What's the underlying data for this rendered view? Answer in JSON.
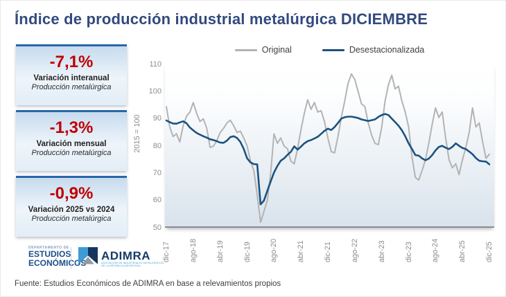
{
  "title": "Índice de producción industrial metalúrgica DICIEMBRE",
  "stat_boxes": [
    {
      "value": "-7,1%",
      "label": "Variación interanual",
      "sublabel": "Producción metalúrgica"
    },
    {
      "value": "-1,3%",
      "label": "Variación mensual",
      "sublabel": "Producción metalúrgica"
    },
    {
      "value": "-0,9%",
      "label": "Variación 2025 vs 2024",
      "sublabel": "Producción metalúrgica"
    }
  ],
  "branding": {
    "dept_small": "DEPARTAMENTO DE",
    "dept_line1": "ESTUDIOS",
    "dept_line2": "ECONÓMICOS",
    "adimra_name": "ADIMRA",
    "adimra_tagline_1": "ASOCIACIÓN DE INDUSTRIALES METALÚRGICOS",
    "adimra_tagline_2": "DE LA REPÚBLICA ARGENTINA"
  },
  "footer": "Fuente: Estudios Económicos de ADIMRA en base a relevamientos propios",
  "colors": {
    "title": "#324a7e",
    "negative_value": "#c00000",
    "box_border": "#2767a8",
    "original_line": "#b3b3b3",
    "desestacionalizada_line": "#1c527f",
    "axis_text": "#8c8c8c"
  },
  "chart_data": {
    "type": "line",
    "title": "",
    "xlabel": "",
    "ylabel": "2015 = 100",
    "ylim": [
      50,
      110
    ],
    "yticks": [
      50,
      60,
      70,
      80,
      90,
      100,
      110
    ],
    "grid": false,
    "legend_position": "top",
    "x_tick_labels": [
      "dic-17",
      "ago-18",
      "abr-19",
      "dic-19",
      "ago-20",
      "abr-21",
      "dic-21",
      "ago-22",
      "abr-23",
      "dic-23",
      "ago-24",
      "abr-25",
      "dic-25"
    ],
    "x_tick_every": 8,
    "x": [
      "dic-17",
      "ene-18",
      "feb-18",
      "mar-18",
      "abr-18",
      "may-18",
      "jun-18",
      "jul-18",
      "ago-18",
      "sep-18",
      "oct-18",
      "nov-18",
      "dic-18",
      "ene-19",
      "feb-19",
      "mar-19",
      "abr-19",
      "may-19",
      "jun-19",
      "jul-19",
      "ago-19",
      "sep-19",
      "oct-19",
      "nov-19",
      "dic-19",
      "ene-20",
      "feb-20",
      "mar-20",
      "abr-20",
      "may-20",
      "jun-20",
      "jul-20",
      "ago-20",
      "sep-20",
      "oct-20",
      "nov-20",
      "dic-20",
      "ene-21",
      "feb-21",
      "mar-21",
      "abr-21",
      "may-21",
      "jun-21",
      "jul-21",
      "ago-21",
      "sep-21",
      "oct-21",
      "nov-21",
      "dic-21",
      "ene-22",
      "feb-22",
      "mar-22",
      "abr-22",
      "may-22",
      "jun-22",
      "jul-22",
      "ago-22",
      "sep-22",
      "oct-22",
      "nov-22",
      "dic-22",
      "ene-23",
      "feb-23",
      "mar-23",
      "abr-23",
      "may-23",
      "jun-23",
      "jul-23",
      "ago-23",
      "sep-23",
      "oct-23",
      "nov-23",
      "dic-23",
      "ene-24",
      "feb-24",
      "mar-24",
      "abr-24",
      "may-24",
      "jun-24",
      "jul-24",
      "ago-24",
      "sep-24",
      "oct-24",
      "nov-24",
      "dic-24",
      "ene-25",
      "feb-25",
      "mar-25",
      "abr-25",
      "may-25",
      "jun-25",
      "jul-25",
      "ago-25",
      "sep-25",
      "oct-25",
      "nov-25",
      "dic-25"
    ],
    "series": [
      {
        "name": "Original",
        "color": "#b3b3b3",
        "width": 2,
        "values": [
          94.5,
          87,
          83.5,
          84.5,
          81.5,
          87.5,
          91,
          92.5,
          96,
          92,
          89,
          90,
          86.5,
          79.5,
          80,
          82,
          85,
          86.5,
          88.5,
          89.5,
          87.5,
          85,
          85.5,
          83,
          80,
          74.5,
          71,
          62,
          52,
          56,
          60,
          70,
          84.5,
          81,
          83,
          80,
          79,
          74.5,
          73.5,
          79,
          86,
          92,
          97,
          93.5,
          96,
          92.5,
          93,
          89,
          83,
          78,
          77.5,
          83.5,
          90.5,
          96.5,
          103,
          106.5,
          104.5,
          100,
          95.5,
          94.5,
          88.5,
          84,
          81,
          80.5,
          87,
          96.5,
          102.5,
          106,
          101,
          102,
          96.5,
          92.5,
          87,
          76,
          68.5,
          67.5,
          71,
          75,
          81,
          88,
          94,
          90.5,
          92.5,
          83,
          75,
          72,
          73.5,
          69.5,
          75,
          79.5,
          85,
          94,
          87,
          88.5,
          81.5,
          75.5,
          77
        ]
      },
      {
        "name": "Desestacionalizada",
        "color": "#1c527f",
        "width": 2.6,
        "values": [
          89.4,
          88.8,
          88.3,
          88.2,
          88.7,
          89.1,
          88.4,
          86.8,
          85.8,
          84.8,
          84.2,
          83.6,
          83.1,
          82.5,
          82.2,
          81.8,
          81.3,
          81.2,
          82,
          83.3,
          83.6,
          83,
          81.5,
          79,
          75.5,
          74,
          73.4,
          73.3,
          58.6,
          60,
          63.5,
          67,
          70.3,
          72.7,
          74.6,
          75.5,
          76.8,
          77.9,
          79.9,
          78.7,
          79.8,
          81,
          81.8,
          82.2,
          82.8,
          83.4,
          84.5,
          85.6,
          86.4,
          85.9,
          87,
          88.5,
          90.1,
          90.6,
          90.8,
          90.8,
          90.6,
          90.3,
          89.8,
          89.5,
          89.2,
          89.5,
          89.8,
          90.7,
          91.4,
          91.8,
          91.4,
          90.1,
          88.8,
          87.5,
          85.8,
          83.6,
          81,
          78.9,
          76.7,
          76.5,
          75.5,
          74.8,
          75.4,
          76.7,
          78.4,
          79.7,
          80.1,
          79.4,
          78.9,
          79.7,
          81,
          80.1,
          79.3,
          78.9,
          78,
          77,
          75.6,
          74.6,
          74.4,
          74.3,
          73.3
        ]
      }
    ]
  }
}
